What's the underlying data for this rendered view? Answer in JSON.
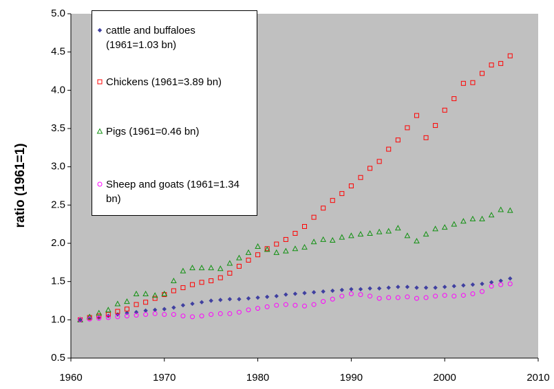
{
  "chart_data": {
    "type": "scatter",
    "ylabel": "ratio (1961=1)",
    "x": [
      1961,
      1962,
      1963,
      1964,
      1965,
      1966,
      1967,
      1968,
      1969,
      1970,
      1971,
      1972,
      1973,
      1974,
      1975,
      1976,
      1977,
      1978,
      1979,
      1980,
      1981,
      1982,
      1983,
      1984,
      1985,
      1986,
      1987,
      1988,
      1989,
      1990,
      1991,
      1992,
      1993,
      1994,
      1995,
      1996,
      1997,
      1998,
      1999,
      2000,
      2001,
      2002,
      2003,
      2004,
      2005,
      2006,
      2007
    ],
    "xlim": [
      1960,
      2010
    ],
    "xticks": [
      1960,
      1970,
      1980,
      1990,
      2000,
      2010
    ],
    "ylim": [
      0.5,
      5
    ],
    "yticks": [
      0.5,
      {
        "value": 1,
        "label": "1.0"
      },
      1.5,
      {
        "value": 2,
        "label": "2.0"
      },
      2.5,
      {
        "value": 3,
        "label": "3.0"
      },
      3.5,
      {
        "value": 4,
        "label": "4.0"
      },
      4.5,
      {
        "value": 5,
        "label": "5.0"
      }
    ],
    "grid": false,
    "legend": "upper left",
    "series": [
      {
        "name": "cattle and buffaloes (1961=1.03 bn)",
        "color": "#4040a0",
        "marker": "diamond",
        "values": [
          1.0,
          1.02,
          1.03,
          1.05,
          1.07,
          1.09,
          1.1,
          1.12,
          1.13,
          1.14,
          1.16,
          1.19,
          1.21,
          1.23,
          1.25,
          1.26,
          1.27,
          1.27,
          1.28,
          1.29,
          1.3,
          1.31,
          1.33,
          1.34,
          1.35,
          1.36,
          1.37,
          1.38,
          1.39,
          1.4,
          1.4,
          1.41,
          1.41,
          1.42,
          1.43,
          1.43,
          1.42,
          1.42,
          1.42,
          1.43,
          1.44,
          1.45,
          1.46,
          1.47,
          1.49,
          1.51,
          1.54
        ]
      },
      {
        "name": "Chickens (1961=3.89 bn)",
        "color": "#ff0000",
        "marker": "square",
        "values": [
          1.0,
          1.03,
          1.05,
          1.07,
          1.11,
          1.14,
          1.2,
          1.23,
          1.28,
          1.33,
          1.38,
          1.42,
          1.46,
          1.49,
          1.51,
          1.55,
          1.61,
          1.7,
          1.78,
          1.85,
          1.93,
          1.99,
          2.05,
          2.13,
          2.22,
          2.34,
          2.46,
          2.56,
          2.65,
          2.75,
          2.86,
          2.98,
          3.07,
          3.23,
          3.35,
          3.51,
          3.67,
          3.38,
          3.54,
          3.74,
          3.89,
          4.09,
          4.1,
          4.22,
          4.33,
          4.35,
          4.45
        ]
      },
      {
        "name": "Pigs (1961=0.46 bn)",
        "color": "#109010",
        "marker": "triangle",
        "values": [
          1.0,
          1.04,
          1.09,
          1.13,
          1.21,
          1.24,
          1.34,
          1.34,
          1.32,
          1.34,
          1.51,
          1.64,
          1.68,
          1.68,
          1.68,
          1.67,
          1.74,
          1.81,
          1.88,
          1.96,
          1.92,
          1.88,
          1.9,
          1.93,
          1.95,
          2.02,
          2.05,
          2.04,
          2.08,
          2.1,
          2.12,
          2.13,
          2.15,
          2.16,
          2.2,
          2.1,
          2.03,
          2.12,
          2.19,
          2.21,
          2.25,
          2.29,
          2.32,
          2.32,
          2.37,
          2.44,
          2.43
        ]
      },
      {
        "name": "Sheep and goats (1961=1.34 bn)",
        "color": "#ff00ff",
        "marker": "circle",
        "values": [
          1.0,
          1.01,
          1.02,
          1.03,
          1.04,
          1.05,
          1.06,
          1.07,
          1.08,
          1.07,
          1.07,
          1.05,
          1.04,
          1.05,
          1.07,
          1.08,
          1.08,
          1.1,
          1.13,
          1.15,
          1.17,
          1.19,
          1.2,
          1.19,
          1.18,
          1.2,
          1.24,
          1.27,
          1.31,
          1.34,
          1.33,
          1.31,
          1.28,
          1.29,
          1.29,
          1.3,
          1.28,
          1.29,
          1.31,
          1.32,
          1.31,
          1.32,
          1.34,
          1.37,
          1.44,
          1.46,
          1.47
        ]
      }
    ]
  }
}
